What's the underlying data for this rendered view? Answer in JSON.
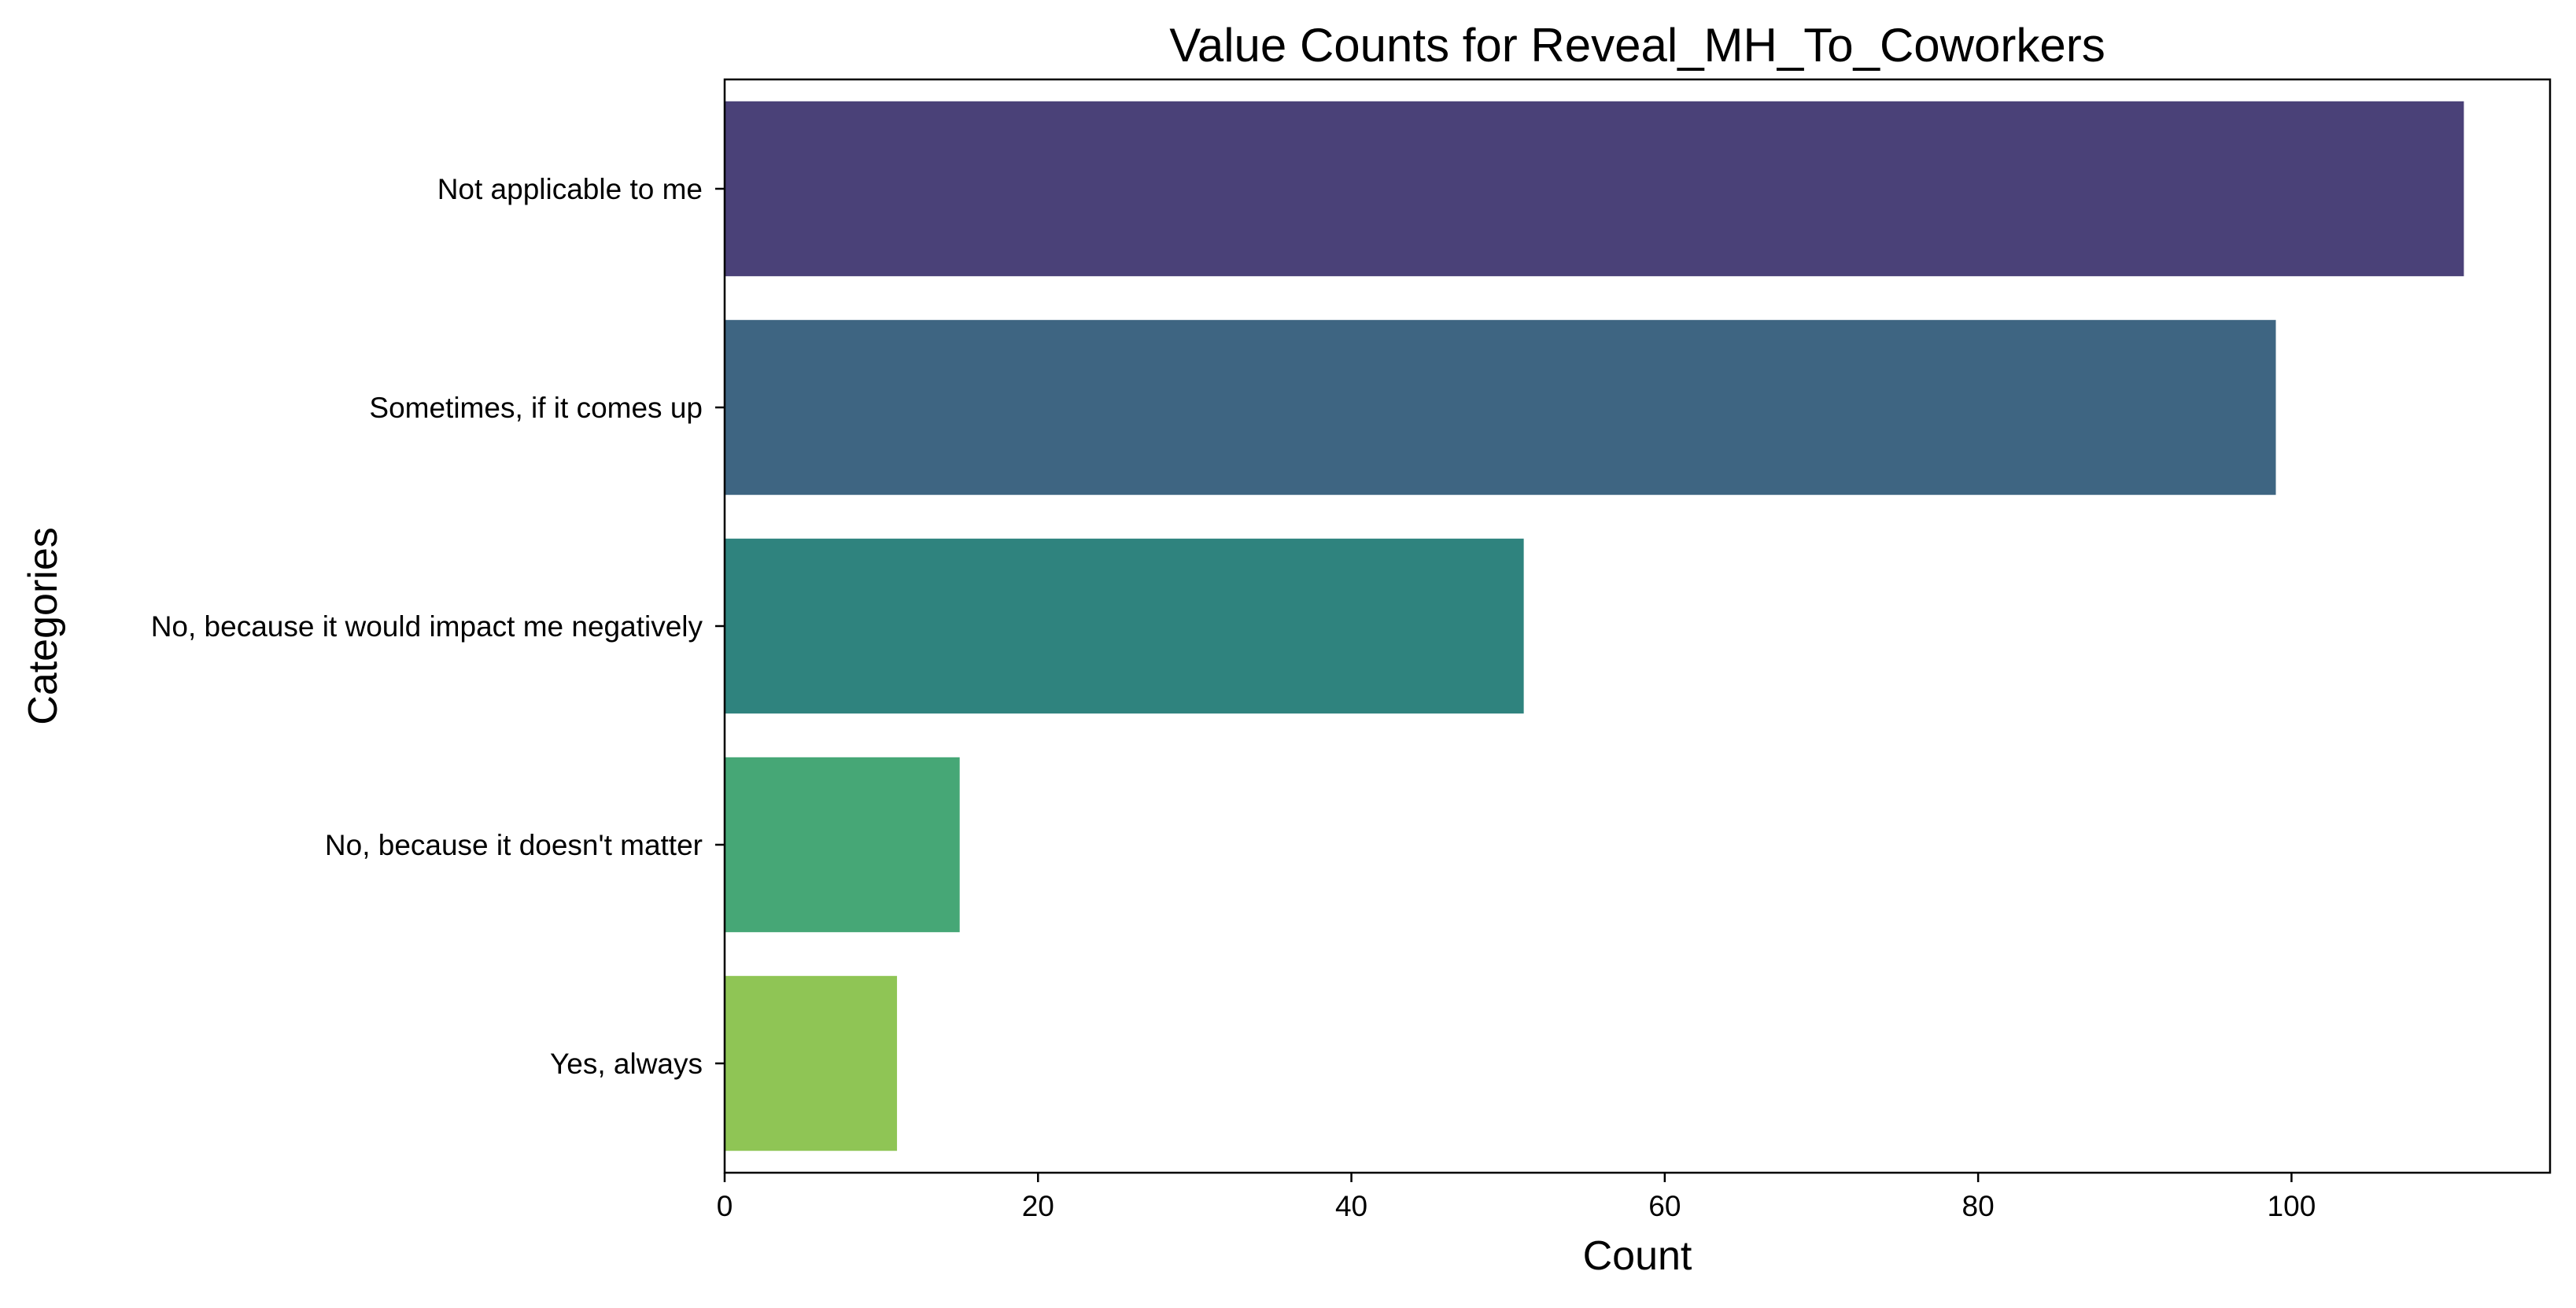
{
  "chart_data": {
    "type": "bar",
    "orientation": "horizontal",
    "title": "Value Counts for Reveal_MH_To_Coworkers",
    "xlabel": "Count",
    "ylabel": "Categories",
    "categories": [
      "Not applicable to me",
      "Sometimes, if it comes up",
      "No, because it would impact me negatively",
      "No, because it doesn't matter",
      "Yes, always"
    ],
    "values": [
      111,
      99,
      51,
      15,
      11
    ],
    "colors": [
      "#4a4178",
      "#3e6582",
      "#2f837e",
      "#46a776",
      "#8fc555"
    ],
    "xlim": [
      0,
      116.5
    ],
    "xticks": [
      0,
      20,
      40,
      60,
      80,
      100
    ],
    "xtick_labels": [
      "0",
      "20",
      "40",
      "60",
      "80",
      "100"
    ],
    "grid": false,
    "legend": "none"
  }
}
